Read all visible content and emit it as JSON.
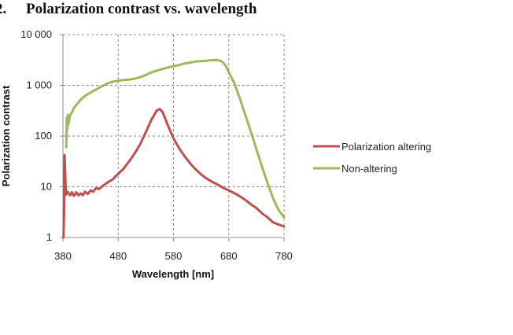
{
  "header": {
    "number": "2.",
    "title": "Polarization contrast vs. wavelength"
  },
  "colors": {
    "polarization_altering": "#c0504d",
    "non_altering": "#9bbb59",
    "grid": "#8c8c8c"
  },
  "chart_data": {
    "type": "line",
    "title": "Polarization contrast vs. wavelength",
    "xlabel": "Wavelength [nm]",
    "ylabel": "Polarization contrast",
    "xlim": [
      380,
      780
    ],
    "ylim": [
      1,
      10000
    ],
    "yscale": "log",
    "xticks": [
      380,
      480,
      580,
      680,
      780
    ],
    "xtick_labels": [
      "380",
      "480",
      "580",
      "680",
      "780"
    ],
    "yticks": [
      1,
      10,
      100,
      1000,
      10000
    ],
    "ytick_labels": [
      "1",
      "10",
      "100",
      "1 000",
      "10 000"
    ],
    "grid": true,
    "legend_position": "right",
    "series": [
      {
        "name": "Polarization altering",
        "color": "#c0504d",
        "x": [
          381,
          382,
          383,
          384,
          385,
          386,
          388,
          390,
          393,
          396,
          400,
          404,
          408,
          412,
          416,
          420,
          425,
          430,
          435,
          440,
          445,
          450,
          455,
          460,
          465,
          470,
          475,
          480,
          490,
          500,
          510,
          520,
          530,
          540,
          550,
          555,
          560,
          565,
          570,
          575,
          580,
          590,
          600,
          610,
          620,
          630,
          640,
          650,
          660,
          670,
          680,
          690,
          700,
          710,
          720,
          730,
          740,
          750,
          760,
          770,
          780
        ],
        "y": [
          1,
          3,
          42,
          20,
          9,
          7,
          8,
          7.5,
          6.8,
          7.8,
          6.6,
          7.8,
          6.8,
          7.4,
          6.8,
          8,
          7.2,
          8.5,
          8,
          9.5,
          9,
          10,
          11,
          12,
          13,
          14,
          16,
          18,
          23,
          32,
          46,
          70,
          120,
          210,
          320,
          340,
          300,
          220,
          160,
          120,
          90,
          58,
          40,
          29,
          22,
          17.5,
          14.5,
          12.5,
          11,
          9.5,
          8.5,
          7.5,
          6.5,
          5.5,
          4.5,
          3.8,
          3,
          2.5,
          2,
          1.8,
          1.65
        ]
      },
      {
        "name": "Non-altering",
        "color": "#9bbb59",
        "x": [
          386,
          387,
          388,
          389,
          390,
          392,
          394,
          397,
          400,
          405,
          410,
          415,
          420,
          430,
          440,
          450,
          460,
          470,
          480,
          490,
          500,
          510,
          520,
          530,
          540,
          550,
          560,
          570,
          580,
          590,
          600,
          610,
          620,
          630,
          640,
          650,
          660,
          665,
          670,
          675,
          680,
          690,
          700,
          710,
          720,
          730,
          740,
          750,
          760,
          770,
          780
        ],
        "y": [
          60,
          230,
          140,
          260,
          170,
          240,
          270,
          300,
          360,
          420,
          490,
          560,
          620,
          720,
          830,
          950,
          1080,
          1180,
          1230,
          1280,
          1300,
          1350,
          1450,
          1600,
          1800,
          1950,
          2100,
          2250,
          2400,
          2500,
          2700,
          2800,
          2950,
          3000,
          3050,
          3150,
          3150,
          3050,
          2800,
          2400,
          1800,
          1100,
          550,
          260,
          120,
          55,
          25,
          12,
          6,
          3.5,
          2.5
        ]
      }
    ]
  }
}
